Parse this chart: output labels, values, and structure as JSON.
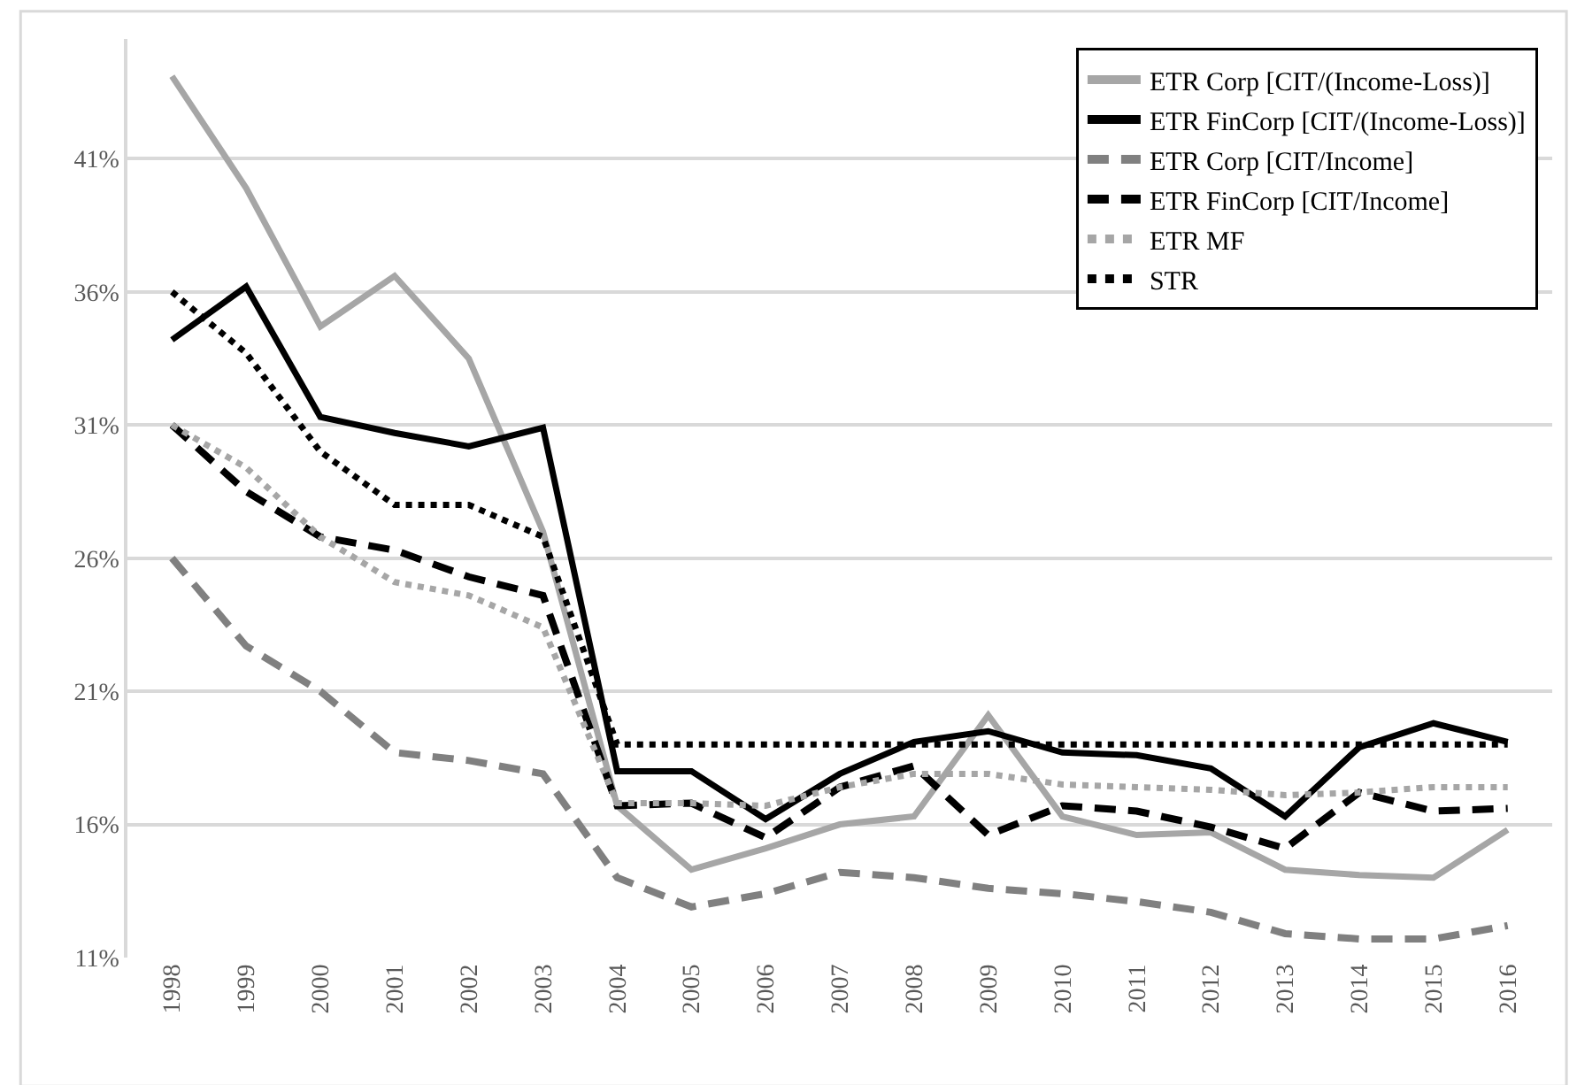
{
  "chart_data": {
    "type": "line",
    "categories": [
      "1998",
      "1999",
      "2000",
      "2001",
      "2002",
      "2003",
      "2004",
      "2005",
      "2006",
      "2007",
      "2008",
      "2009",
      "2010",
      "2011",
      "2012",
      "2013",
      "2014",
      "2015",
      "2016"
    ],
    "series": [
      {
        "name": "ETR Corp [CIT/(Income-Loss)]",
        "color": "#a6a6a6",
        "line_style": "solid",
        "values": [
          44.1,
          39.9,
          34.7,
          36.6,
          33.5,
          27.0,
          16.7,
          14.3,
          15.1,
          16.0,
          16.3,
          20.1,
          16.3,
          15.6,
          15.7,
          14.3,
          14.1,
          14.0,
          15.8
        ]
      },
      {
        "name": "ETR FinCorp [CIT/(Income-Loss)]",
        "color": "#000000",
        "line_style": "solid",
        "values": [
          34.2,
          36.2,
          31.3,
          30.7,
          30.2,
          30.9,
          18.0,
          18.0,
          16.2,
          17.9,
          19.1,
          19.5,
          18.7,
          18.6,
          18.1,
          16.3,
          18.9,
          19.8,
          19.1
        ]
      },
      {
        "name": "ETR Corp [CIT/Income]",
        "color": "#808080",
        "line_style": "dashed",
        "values": [
          26.0,
          22.7,
          21.0,
          18.7,
          18.4,
          17.9,
          14.0,
          12.9,
          13.4,
          14.2,
          14.0,
          13.6,
          13.4,
          13.1,
          12.7,
          11.9,
          11.7,
          11.7,
          12.2
        ]
      },
      {
        "name": "ETR FinCorp [CIT/Income]",
        "color": "#000000",
        "line_style": "dashed",
        "values": [
          31.0,
          28.5,
          26.8,
          26.3,
          25.3,
          24.6,
          16.7,
          16.8,
          15.5,
          17.4,
          18.2,
          15.6,
          16.7,
          16.5,
          15.9,
          15.1,
          17.2,
          16.5,
          16.6
        ]
      },
      {
        "name": "ETR MF",
        "color": "#a6a6a6",
        "line_style": "dotted",
        "values": [
          31.0,
          29.4,
          26.8,
          25.1,
          24.6,
          23.4,
          16.8,
          16.8,
          16.7,
          17.4,
          17.9,
          17.9,
          17.5,
          17.4,
          17.3,
          17.1,
          17.2,
          17.4,
          17.4
        ]
      },
      {
        "name": "STR",
        "color": "#000000",
        "line_style": "dotted",
        "values": [
          36.0,
          33.7,
          30.0,
          28.0,
          28.0,
          26.8,
          19.0,
          19.0,
          19.0,
          19.0,
          19.0,
          19.0,
          19.0,
          19.0,
          19.0,
          19.0,
          19.0,
          19.0,
          19.0
        ]
      }
    ],
    "ylim": [
      11,
      45.5
    ],
    "yticks": [
      {
        "value": 11,
        "label": "11%"
      },
      {
        "value": 16,
        "label": "16%"
      },
      {
        "value": 21,
        "label": "21%"
      },
      {
        "value": 26,
        "label": "26%"
      },
      {
        "value": 31,
        "label": "31%"
      },
      {
        "value": 36,
        "label": "36%"
      },
      {
        "value": 41,
        "label": "41%"
      }
    ],
    "grid": "y",
    "legend": "top right",
    "marker": "none"
  }
}
